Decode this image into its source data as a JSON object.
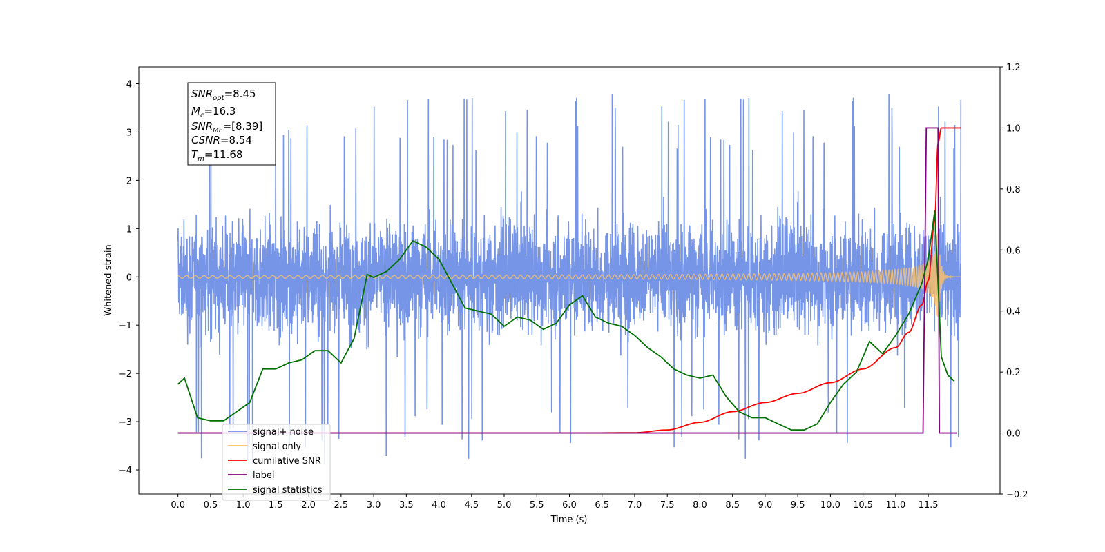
{
  "chart_data": {
    "type": "line",
    "title": "",
    "xlabel": "Time (s)",
    "ylabel": "Whitened strain",
    "y2label": "",
    "xlim": [
      -0.6,
      12.6
    ],
    "ylim": [
      -4.5,
      4.35
    ],
    "y2lim": [
      -0.2,
      1.2
    ],
    "xticks": [
      0.0,
      0.5,
      1.0,
      1.5,
      2.0,
      2.5,
      3.0,
      3.5,
      4.0,
      4.5,
      5.0,
      5.5,
      6.0,
      6.5,
      7.0,
      7.5,
      8.0,
      8.5,
      9.0,
      9.5,
      10.0,
      10.5,
      11.0,
      11.5
    ],
    "xtick_labels": [
      "0.0",
      "0.5",
      "1.0",
      "1.5",
      "2.0",
      "2.5",
      "3.0",
      "3.5",
      "4.0",
      "4.5",
      "5.0",
      "5.5",
      "6.0",
      "6.5",
      "7.0",
      "7.5",
      "8.0",
      "8.5",
      "9.0",
      "9.5",
      "10.0",
      "10.5",
      "11.0",
      "11.5"
    ],
    "yticks": [
      -4,
      -3,
      -2,
      -1,
      0,
      1,
      2,
      3,
      4
    ],
    "ytick_labels": [
      "−4",
      "−3",
      "−2",
      "−1",
      "0",
      "1",
      "2",
      "3",
      "4"
    ],
    "y2ticks": [
      -0.2,
      0.0,
      0.2,
      0.4,
      0.6,
      0.8,
      1.0,
      1.2
    ],
    "y2tick_labels": [
      "−0.2",
      "0.0",
      "0.2",
      "0.4",
      "0.6",
      "0.8",
      "1.0",
      "1.2"
    ],
    "grid": false,
    "legend_position": "lower-left",
    "legend": [
      {
        "label": "signal+ noise",
        "color": "#6f8fe6"
      },
      {
        "label": "signal only",
        "color": "#ffc264"
      },
      {
        "label": "cumilative SNR",
        "color": "#ff0000"
      },
      {
        "label": "label",
        "color": "#800080"
      },
      {
        "label": "signal statistics",
        "color": "#007000"
      }
    ],
    "annotation": {
      "SNR_opt": "8.45",
      "Mc": "16.3",
      "SNR_MF": "[8.39]",
      "CSNR": "8.54",
      "Tm": "11.68"
    },
    "series": [
      {
        "name": "signal+ noise",
        "axis": "left",
        "color": "#6f8fe6",
        "kind": "noise",
        "x_range": [
          0.0,
          12.0
        ],
        "typical_amplitude": 2.3,
        "max_value": 3.92,
        "min_value": -4.1
      },
      {
        "name": "signal only",
        "axis": "left",
        "color": "#ffc264",
        "kind": "chirp",
        "x_range": [
          0.0,
          12.0
        ],
        "peak_amplitude": 1.0,
        "merger_time": 11.65
      },
      {
        "name": "cumilative SNR",
        "axis": "right",
        "color": "#ff0000",
        "x": [
          0.0,
          6.0,
          7.0,
          7.5,
          8.0,
          8.5,
          9.0,
          9.5,
          10.0,
          10.5,
          11.0,
          11.2,
          11.4,
          11.5,
          11.6,
          11.65,
          11.7,
          12.0
        ],
        "values": [
          0.0,
          0.0,
          0.001,
          0.01,
          0.035,
          0.07,
          0.1,
          0.13,
          0.165,
          0.21,
          0.28,
          0.33,
          0.42,
          0.5,
          0.7,
          0.95,
          1.0,
          1.0
        ]
      },
      {
        "name": "label",
        "axis": "right",
        "color": "#800080",
        "x": [
          0.0,
          11.42,
          11.47,
          11.54,
          11.65,
          11.67,
          11.74,
          11.94
        ],
        "values": [
          0.0,
          0.0,
          1.0,
          1.0,
          1.0,
          0.0,
          0.0,
          0.0
        ]
      },
      {
        "name": "signal statistics",
        "axis": "right",
        "color": "#007000",
        "x": [
          0.0,
          0.1,
          0.3,
          0.5,
          0.7,
          0.9,
          1.1,
          1.3,
          1.5,
          1.7,
          1.9,
          2.1,
          2.3,
          2.5,
          2.7,
          2.9,
          3.0,
          3.2,
          3.4,
          3.6,
          3.8,
          4.0,
          4.2,
          4.4,
          4.6,
          4.8,
          5.0,
          5.2,
          5.4,
          5.6,
          5.8,
          6.0,
          6.2,
          6.4,
          6.6,
          6.8,
          7.0,
          7.2,
          7.4,
          7.6,
          7.8,
          8.0,
          8.2,
          8.4,
          8.6,
          8.8,
          9.0,
          9.2,
          9.4,
          9.6,
          9.8,
          10.0,
          10.2,
          10.4,
          10.6,
          10.8,
          11.0,
          11.2,
          11.4,
          11.5,
          11.6,
          11.7,
          11.8,
          11.9
        ],
        "values": [
          0.16,
          0.18,
          0.05,
          0.04,
          0.04,
          0.07,
          0.1,
          0.21,
          0.21,
          0.23,
          0.24,
          0.27,
          0.27,
          0.23,
          0.31,
          0.52,
          0.51,
          0.53,
          0.57,
          0.63,
          0.61,
          0.57,
          0.49,
          0.41,
          0.4,
          0.39,
          0.35,
          0.38,
          0.37,
          0.34,
          0.36,
          0.42,
          0.45,
          0.38,
          0.36,
          0.35,
          0.32,
          0.28,
          0.25,
          0.21,
          0.19,
          0.18,
          0.19,
          0.12,
          0.07,
          0.05,
          0.05,
          0.03,
          0.01,
          0.01,
          0.03,
          0.1,
          0.16,
          0.2,
          0.3,
          0.26,
          0.32,
          0.39,
          0.49,
          0.57,
          0.73,
          0.25,
          0.19,
          0.17
        ]
      }
    ]
  }
}
